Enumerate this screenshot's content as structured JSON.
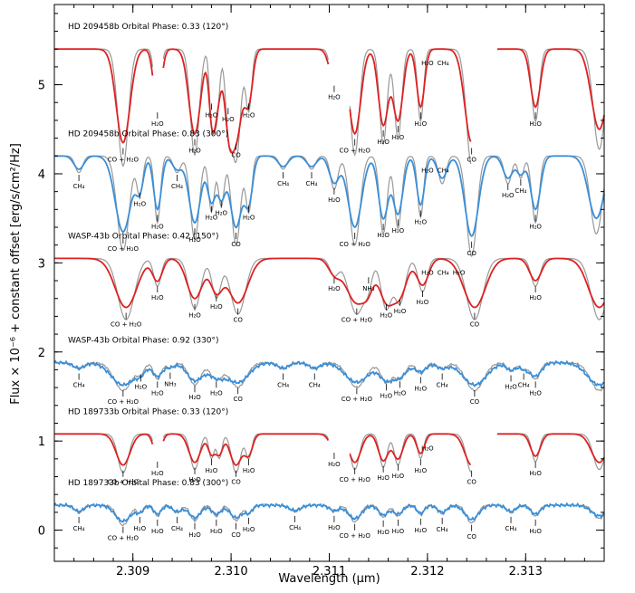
{
  "chart_data": {
    "type": "line",
    "title": "",
    "xlabel": "Wavelength (μm)",
    "ylabel": "Flux × 10⁻⁶ + constant offset [erg/s/cm²/Hz]",
    "xlim": [
      2.3082,
      2.3138
    ],
    "ylim": [
      -0.35,
      5.9
    ],
    "xticks": [
      2.309,
      2.31,
      2.311,
      2.312,
      2.313
    ],
    "xtick_labels": [
      "2.309",
      "2.310",
      "2.311",
      "2.312",
      "2.313"
    ],
    "yticks": [
      0,
      1,
      2,
      3,
      4,
      5
    ],
    "ytick_labels": [
      "0",
      "1",
      "2",
      "3",
      "4",
      "5"
    ],
    "grid": false,
    "colors": {
      "model": "#999999",
      "red": "#dd2222",
      "blue": "#3a8fd8"
    },
    "panels": [
      {
        "title": "HD 209458b Orbital Phase: 0.33 (120°)",
        "offset": 5.4,
        "color": "red",
        "gaps": [
          [
            2.3092,
            2.3093
          ],
          [
            2.311,
            2.3112
          ],
          [
            2.31245,
            2.3127
          ]
        ],
        "lines": [
          {
            "x": 2.3089,
            "depth": 1.05,
            "width": 7e-05,
            "label": "CO + H₂O"
          },
          {
            "x": 2.30925,
            "depth": 0.65,
            "width": 4e-05,
            "label": "H₂O"
          },
          {
            "x": 2.30963,
            "depth": 0.95,
            "width": 6e-05,
            "label": "H₂O"
          },
          {
            "x": 2.3098,
            "depth": 0.55,
            "width": 3e-05,
            "label": "H₂O"
          },
          {
            "x": 2.30985,
            "depth": 0.65,
            "width": 4e-05,
            "label": ""
          },
          {
            "x": 2.30997,
            "depth": 0.6,
            "width": 4e-05,
            "label": "H₂O"
          },
          {
            "x": 2.31005,
            "depth": 1.0,
            "width": 6e-05,
            "label": "CO"
          },
          {
            "x": 2.31018,
            "depth": 0.55,
            "width": 4e-05,
            "label": "H₂O"
          },
          {
            "x": 2.31105,
            "depth": 0.35,
            "width": 5e-05,
            "label": "H₂O"
          },
          {
            "x": 2.31126,
            "depth": 0.95,
            "width": 6e-05,
            "label": "CO + H₂O"
          },
          {
            "x": 2.31155,
            "depth": 0.85,
            "width": 5e-05,
            "label": "H₂O"
          },
          {
            "x": 2.3117,
            "depth": 0.8,
            "width": 5e-05,
            "label": "H₂O"
          },
          {
            "x": 2.31193,
            "depth": 0.65,
            "width": 4e-05,
            "label": "H₂O"
          },
          {
            "x": 2.31245,
            "depth": 1.05,
            "width": 7e-05,
            "label": "CO"
          },
          {
            "x": 2.3131,
            "depth": 0.65,
            "width": 5e-05,
            "label": "H₂O"
          },
          {
            "x": 2.31375,
            "depth": 0.9,
            "width": 8e-05,
            "label": ""
          }
        ],
        "extra_labels": [
          "H₂O",
          "CH₄"
        ]
      },
      {
        "title": "HD 209458b Orbital Phase: 0.83 (300°)",
        "offset": 4.2,
        "color": "blue",
        "gaps": [],
        "lines": [
          {
            "x": 2.30845,
            "depth": 0.15,
            "width": 5e-05,
            "label": "CH₄"
          },
          {
            "x": 2.3089,
            "depth": 0.85,
            "width": 8e-05,
            "label": "CO + H₂O"
          },
          {
            "x": 2.30907,
            "depth": 0.35,
            "width": 4e-05,
            "label": "H₂O"
          },
          {
            "x": 2.30925,
            "depth": 0.6,
            "width": 4e-05,
            "label": "H₂O"
          },
          {
            "x": 2.30945,
            "depth": 0.15,
            "width": 5e-05,
            "label": "CH₄"
          },
          {
            "x": 2.30963,
            "depth": 0.75,
            "width": 6e-05,
            "label": "H₂O"
          },
          {
            "x": 2.3098,
            "depth": 0.5,
            "width": 4e-05,
            "label": "H₂O"
          },
          {
            "x": 2.3099,
            "depth": 0.45,
            "width": 4e-05,
            "label": "H₂O"
          },
          {
            "x": 2.31005,
            "depth": 0.8,
            "width": 6e-05,
            "label": "CO"
          },
          {
            "x": 2.31018,
            "depth": 0.5,
            "width": 4e-05,
            "label": "H₂O"
          },
          {
            "x": 2.31053,
            "depth": 0.12,
            "width": 5e-05,
            "label": "CH₄"
          },
          {
            "x": 2.31082,
            "depth": 0.12,
            "width": 5e-05,
            "label": "CH₄"
          },
          {
            "x": 2.31105,
            "depth": 0.3,
            "width": 5e-05,
            "label": "H₂O"
          },
          {
            "x": 2.31126,
            "depth": 0.8,
            "width": 7e-05,
            "label": "CO + H₂O"
          },
          {
            "x": 2.31155,
            "depth": 0.7,
            "width": 5e-05,
            "label": "H₂O"
          },
          {
            "x": 2.3117,
            "depth": 0.65,
            "width": 5e-05,
            "label": "H₂O"
          },
          {
            "x": 2.31193,
            "depth": 0.55,
            "width": 4e-05,
            "label": "H₂O"
          },
          {
            "x": 2.31215,
            "depth": 0.25,
            "width": 5e-05,
            "label": ""
          },
          {
            "x": 2.31245,
            "depth": 0.9,
            "width": 7e-05,
            "label": "CO"
          },
          {
            "x": 2.31282,
            "depth": 0.25,
            "width": 5e-05,
            "label": "H₂O"
          },
          {
            "x": 2.31295,
            "depth": 0.2,
            "width": 4e-05,
            "label": "CH₄"
          },
          {
            "x": 2.3131,
            "depth": 0.6,
            "width": 5e-05,
            "label": "H₂O"
          },
          {
            "x": 2.31372,
            "depth": 0.7,
            "width": 8e-05,
            "label": ""
          }
        ],
        "extra_labels": [
          "H₂O",
          "CH₄"
        ]
      },
      {
        "title": "WASP-43b Orbital Phase: 0.42 (150°)",
        "offset": 3.05,
        "color": "red",
        "gaps": [],
        "lines": [
          {
            "x": 2.30893,
            "depth": 0.55,
            "width": 0.00011,
            "label": "CO + H₂O"
          },
          {
            "x": 2.30925,
            "depth": 0.25,
            "width": 5e-05,
            "label": "H₂O"
          },
          {
            "x": 2.30963,
            "depth": 0.45,
            "width": 8e-05,
            "label": "H₂O"
          },
          {
            "x": 2.30985,
            "depth": 0.35,
            "width": 6e-05,
            "label": "H₂O"
          },
          {
            "x": 2.31007,
            "depth": 0.5,
            "width": 0.0001,
            "label": "CO"
          },
          {
            "x": 2.31105,
            "depth": 0.15,
            "width": 6e-05,
            "label": "H₂O"
          },
          {
            "x": 2.31128,
            "depth": 0.5,
            "width": 0.00011,
            "label": "CO + H₂O"
          },
          {
            "x": 2.3114,
            "depth": 0.15,
            "width": 5e-05,
            "label": "NH₃"
          },
          {
            "x": 2.31158,
            "depth": 0.45,
            "width": 7e-05,
            "label": "H₂O"
          },
          {
            "x": 2.31172,
            "depth": 0.4,
            "width": 7e-05,
            "label": "H₂O"
          },
          {
            "x": 2.31195,
            "depth": 0.3,
            "width": 6e-05,
            "label": "H₂O"
          },
          {
            "x": 2.31248,
            "depth": 0.55,
            "width": 0.00011,
            "label": "CO"
          },
          {
            "x": 2.3131,
            "depth": 0.25,
            "width": 6e-05,
            "label": "H₂O"
          },
          {
            "x": 2.31375,
            "depth": 0.55,
            "width": 0.00011,
            "label": ""
          }
        ],
        "extra_labels": [
          "H₂O",
          "CH₄",
          "H₂O"
        ]
      },
      {
        "title": "WASP-43b Orbital Phase: 0.92 (330°)",
        "offset": 1.88,
        "color": "blue",
        "gaps": [],
        "lines": [
          {
            "x": 2.30845,
            "depth": 0.06,
            "width": 6e-05,
            "label": "CH₄"
          },
          {
            "x": 2.3089,
            "depth": 0.25,
            "width": 0.00012,
            "label": "CO + H₂O"
          },
          {
            "x": 2.30908,
            "depth": 0.08,
            "width": 5e-05,
            "label": "H₂O"
          },
          {
            "x": 2.30925,
            "depth": 0.15,
            "width": 5e-05,
            "label": "H₂O"
          },
          {
            "x": 2.30938,
            "depth": 0.05,
            "width": 5e-05,
            "label": "NH₃"
          },
          {
            "x": 2.30963,
            "depth": 0.2,
            "width": 8e-05,
            "label": "H₂O"
          },
          {
            "x": 2.30985,
            "depth": 0.15,
            "width": 8e-05,
            "label": "H₂O"
          },
          {
            "x": 2.31007,
            "depth": 0.22,
            "width": 0.00011,
            "label": "CO"
          },
          {
            "x": 2.31053,
            "depth": 0.06,
            "width": 6e-05,
            "label": "CH₄"
          },
          {
            "x": 2.31085,
            "depth": 0.06,
            "width": 6e-05,
            "label": "CH₄"
          },
          {
            "x": 2.31128,
            "depth": 0.22,
            "width": 0.00012,
            "label": "CO + H₂O"
          },
          {
            "x": 2.31158,
            "depth": 0.18,
            "width": 7e-05,
            "label": "H₂O"
          },
          {
            "x": 2.31172,
            "depth": 0.15,
            "width": 7e-05,
            "label": "H₂O"
          },
          {
            "x": 2.31193,
            "depth": 0.1,
            "width": 6e-05,
            "label": "H₂O"
          },
          {
            "x": 2.31215,
            "depth": 0.06,
            "width": 6e-05,
            "label": "CH₄"
          },
          {
            "x": 2.31248,
            "depth": 0.25,
            "width": 0.00012,
            "label": "CO"
          },
          {
            "x": 2.31285,
            "depth": 0.08,
            "width": 5e-05,
            "label": "H₂O"
          },
          {
            "x": 2.31298,
            "depth": 0.06,
            "width": 5e-05,
            "label": "CH₄"
          },
          {
            "x": 2.3131,
            "depth": 0.15,
            "width": 6e-05,
            "label": "H₂O"
          },
          {
            "x": 2.31375,
            "depth": 0.25,
            "width": 0.00012,
            "label": ""
          }
        ],
        "extra_labels": []
      },
      {
        "title": "HD 189733b Orbital Phase: 0.33 (120°)",
        "offset": 1.08,
        "color": "red",
        "gaps": [
          [
            2.3092,
            2.3093
          ],
          [
            2.311,
            2.3112
          ],
          [
            2.31245,
            2.3127
          ]
        ],
        "lines": [
          {
            "x": 2.3089,
            "depth": 0.35,
            "width": 7e-05,
            "label": "CO + H₂O"
          },
          {
            "x": 2.30925,
            "depth": 0.25,
            "width": 4e-05,
            "label": "H₂O"
          },
          {
            "x": 2.30963,
            "depth": 0.32,
            "width": 6e-05,
            "label": "H₂O"
          },
          {
            "x": 2.3098,
            "depth": 0.22,
            "width": 3.5e-05,
            "label": "H₂O"
          },
          {
            "x": 2.30988,
            "depth": 0.22,
            "width": 3.5e-05,
            "label": ""
          },
          {
            "x": 2.31005,
            "depth": 0.35,
            "width": 6e-05,
            "label": "CO"
          },
          {
            "x": 2.31018,
            "depth": 0.22,
            "width": 4e-05,
            "label": "H₂O"
          },
          {
            "x": 2.31105,
            "depth": 0.15,
            "width": 5e-05,
            "label": "H₂O"
          },
          {
            "x": 2.31126,
            "depth": 0.32,
            "width": 6e-05,
            "label": "CO + H₂O"
          },
          {
            "x": 2.31155,
            "depth": 0.3,
            "width": 5e-05,
            "label": "H₂O"
          },
          {
            "x": 2.3117,
            "depth": 0.28,
            "width": 5e-05,
            "label": "H₂O"
          },
          {
            "x": 2.31193,
            "depth": 0.22,
            "width": 4e-05,
            "label": "H₂O"
          },
          {
            "x": 2.31245,
            "depth": 0.35,
            "width": 7e-05,
            "label": "CO"
          },
          {
            "x": 2.3131,
            "depth": 0.25,
            "width": 5e-05,
            "label": "H₂O"
          },
          {
            "x": 2.31375,
            "depth": 0.32,
            "width": 8e-05,
            "label": ""
          }
        ],
        "extra_labels": [
          "H₂O"
        ]
      },
      {
        "title": "HD 189733b Orbital Phase: 0.83 (300°)",
        "offset": 0.28,
        "color": "blue",
        "gaps": [],
        "lines": [
          {
            "x": 2.30845,
            "depth": 0.07,
            "width": 5e-05,
            "label": "CH₄"
          },
          {
            "x": 2.3089,
            "depth": 0.18,
            "width": 8e-05,
            "label": "CO + H₂O"
          },
          {
            "x": 2.30907,
            "depth": 0.07,
            "width": 4e-05,
            "label": "H₂O"
          },
          {
            "x": 2.30925,
            "depth": 0.1,
            "width": 4e-05,
            "label": "H₂O"
          },
          {
            "x": 2.30945,
            "depth": 0.07,
            "width": 5e-05,
            "label": "CH₄"
          },
          {
            "x": 2.30963,
            "depth": 0.14,
            "width": 6e-05,
            "label": "H₂O"
          },
          {
            "x": 2.30985,
            "depth": 0.1,
            "width": 5e-05,
            "label": "H₂O"
          },
          {
            "x": 2.31005,
            "depth": 0.14,
            "width": 6e-05,
            "label": "CO"
          },
          {
            "x": 2.31018,
            "depth": 0.08,
            "width": 4e-05,
            "label": "H₂O"
          },
          {
            "x": 2.31065,
            "depth": 0.06,
            "width": 6e-05,
            "label": "CH₄"
          },
          {
            "x": 2.31105,
            "depth": 0.06,
            "width": 5e-05,
            "label": "H₂O"
          },
          {
            "x": 2.31126,
            "depth": 0.15,
            "width": 7e-05,
            "label": "CO + H₂O"
          },
          {
            "x": 2.31155,
            "depth": 0.11,
            "width": 5e-05,
            "label": "H₂O"
          },
          {
            "x": 2.3117,
            "depth": 0.1,
            "width": 5e-05,
            "label": "H₂O"
          },
          {
            "x": 2.31193,
            "depth": 0.09,
            "width": 4e-05,
            "label": "H₂O"
          },
          {
            "x": 2.31215,
            "depth": 0.08,
            "width": 5e-05,
            "label": "CH₄"
          },
          {
            "x": 2.31245,
            "depth": 0.16,
            "width": 7e-05,
            "label": "CO"
          },
          {
            "x": 2.31285,
            "depth": 0.07,
            "width": 5e-05,
            "label": "CH₄"
          },
          {
            "x": 2.3131,
            "depth": 0.1,
            "width": 5e-05,
            "label": "H₂O"
          },
          {
            "x": 2.31375,
            "depth": 0.12,
            "width": 8e-05,
            "label": ""
          }
        ],
        "extra_labels": []
      }
    ]
  }
}
